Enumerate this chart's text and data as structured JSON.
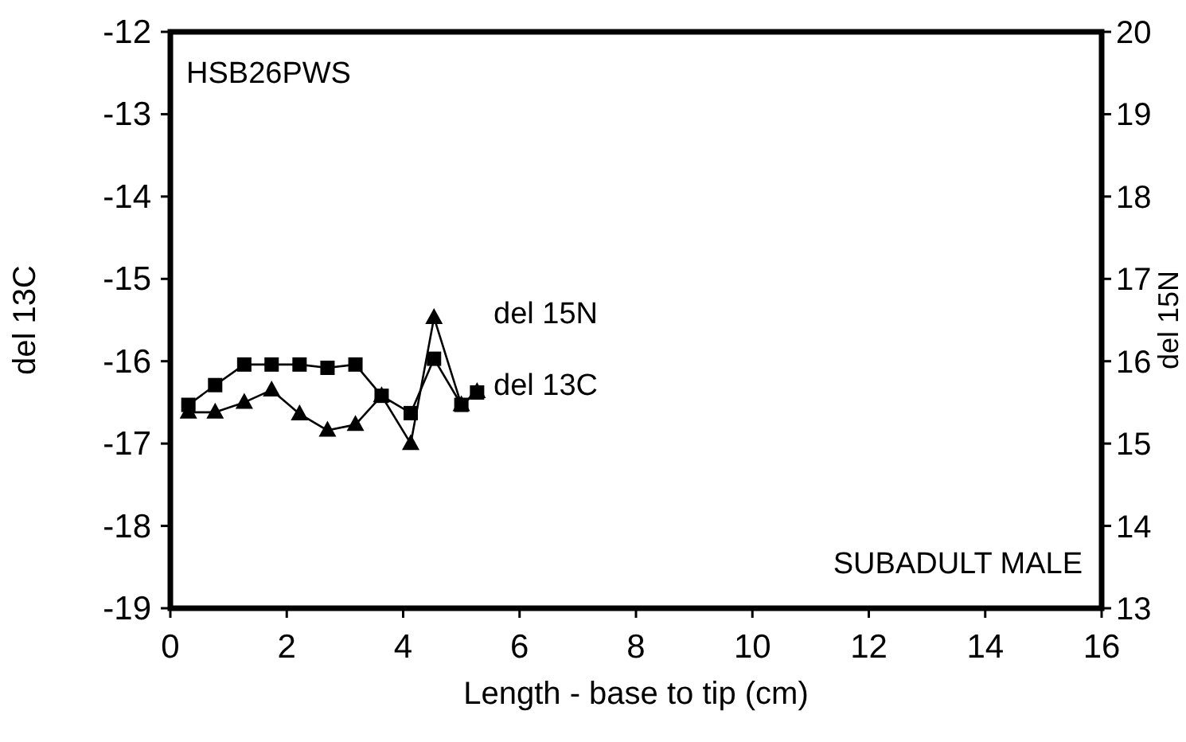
{
  "chart_data": {
    "type": "line",
    "xlabel": "Length - base to tip (cm)",
    "ylabel": "del 13C",
    "y2label": "del 15N",
    "annotations": [
      "HSB26PWS",
      "SUBADULT MALE"
    ],
    "xlim": [
      0,
      16
    ],
    "xticks": [
      0,
      2,
      4,
      6,
      8,
      10,
      12,
      14,
      16
    ],
    "ylim": [
      -19,
      -12
    ],
    "yticks": [
      -19,
      -18,
      -17,
      -16,
      -15,
      -14,
      -13,
      -12
    ],
    "y2lim": [
      13,
      20
    ],
    "y2ticks": [
      13,
      14,
      15,
      16,
      17,
      18,
      19,
      20
    ],
    "grid": false,
    "series": [
      {
        "name": "del 13C",
        "color": "#000000",
        "marker": "square",
        "x": [
          0.31,
          0.77,
          1.27,
          1.74,
          2.22,
          2.7,
          3.18,
          3.63,
          4.13,
          4.53,
          5.0,
          5.27
        ],
        "values": [
          -16.53,
          -16.29,
          -16.04,
          -16.04,
          -16.04,
          -16.08,
          -16.04,
          -16.42,
          -16.63,
          -15.97,
          -16.53,
          -16.38
        ]
      },
      {
        "name": "del 15N",
        "color": "#000000",
        "marker": "triangle",
        "axis": "y2",
        "x": [
          0.31,
          0.77,
          1.27,
          1.74,
          2.22,
          2.7,
          3.18,
          3.63,
          4.13,
          4.53,
          5.0,
          5.27
        ],
        "values": [
          15.38,
          15.38,
          15.5,
          15.65,
          15.36,
          15.16,
          15.23,
          15.58,
          15.0,
          16.53,
          15.47,
          15.63
        ]
      }
    ]
  }
}
